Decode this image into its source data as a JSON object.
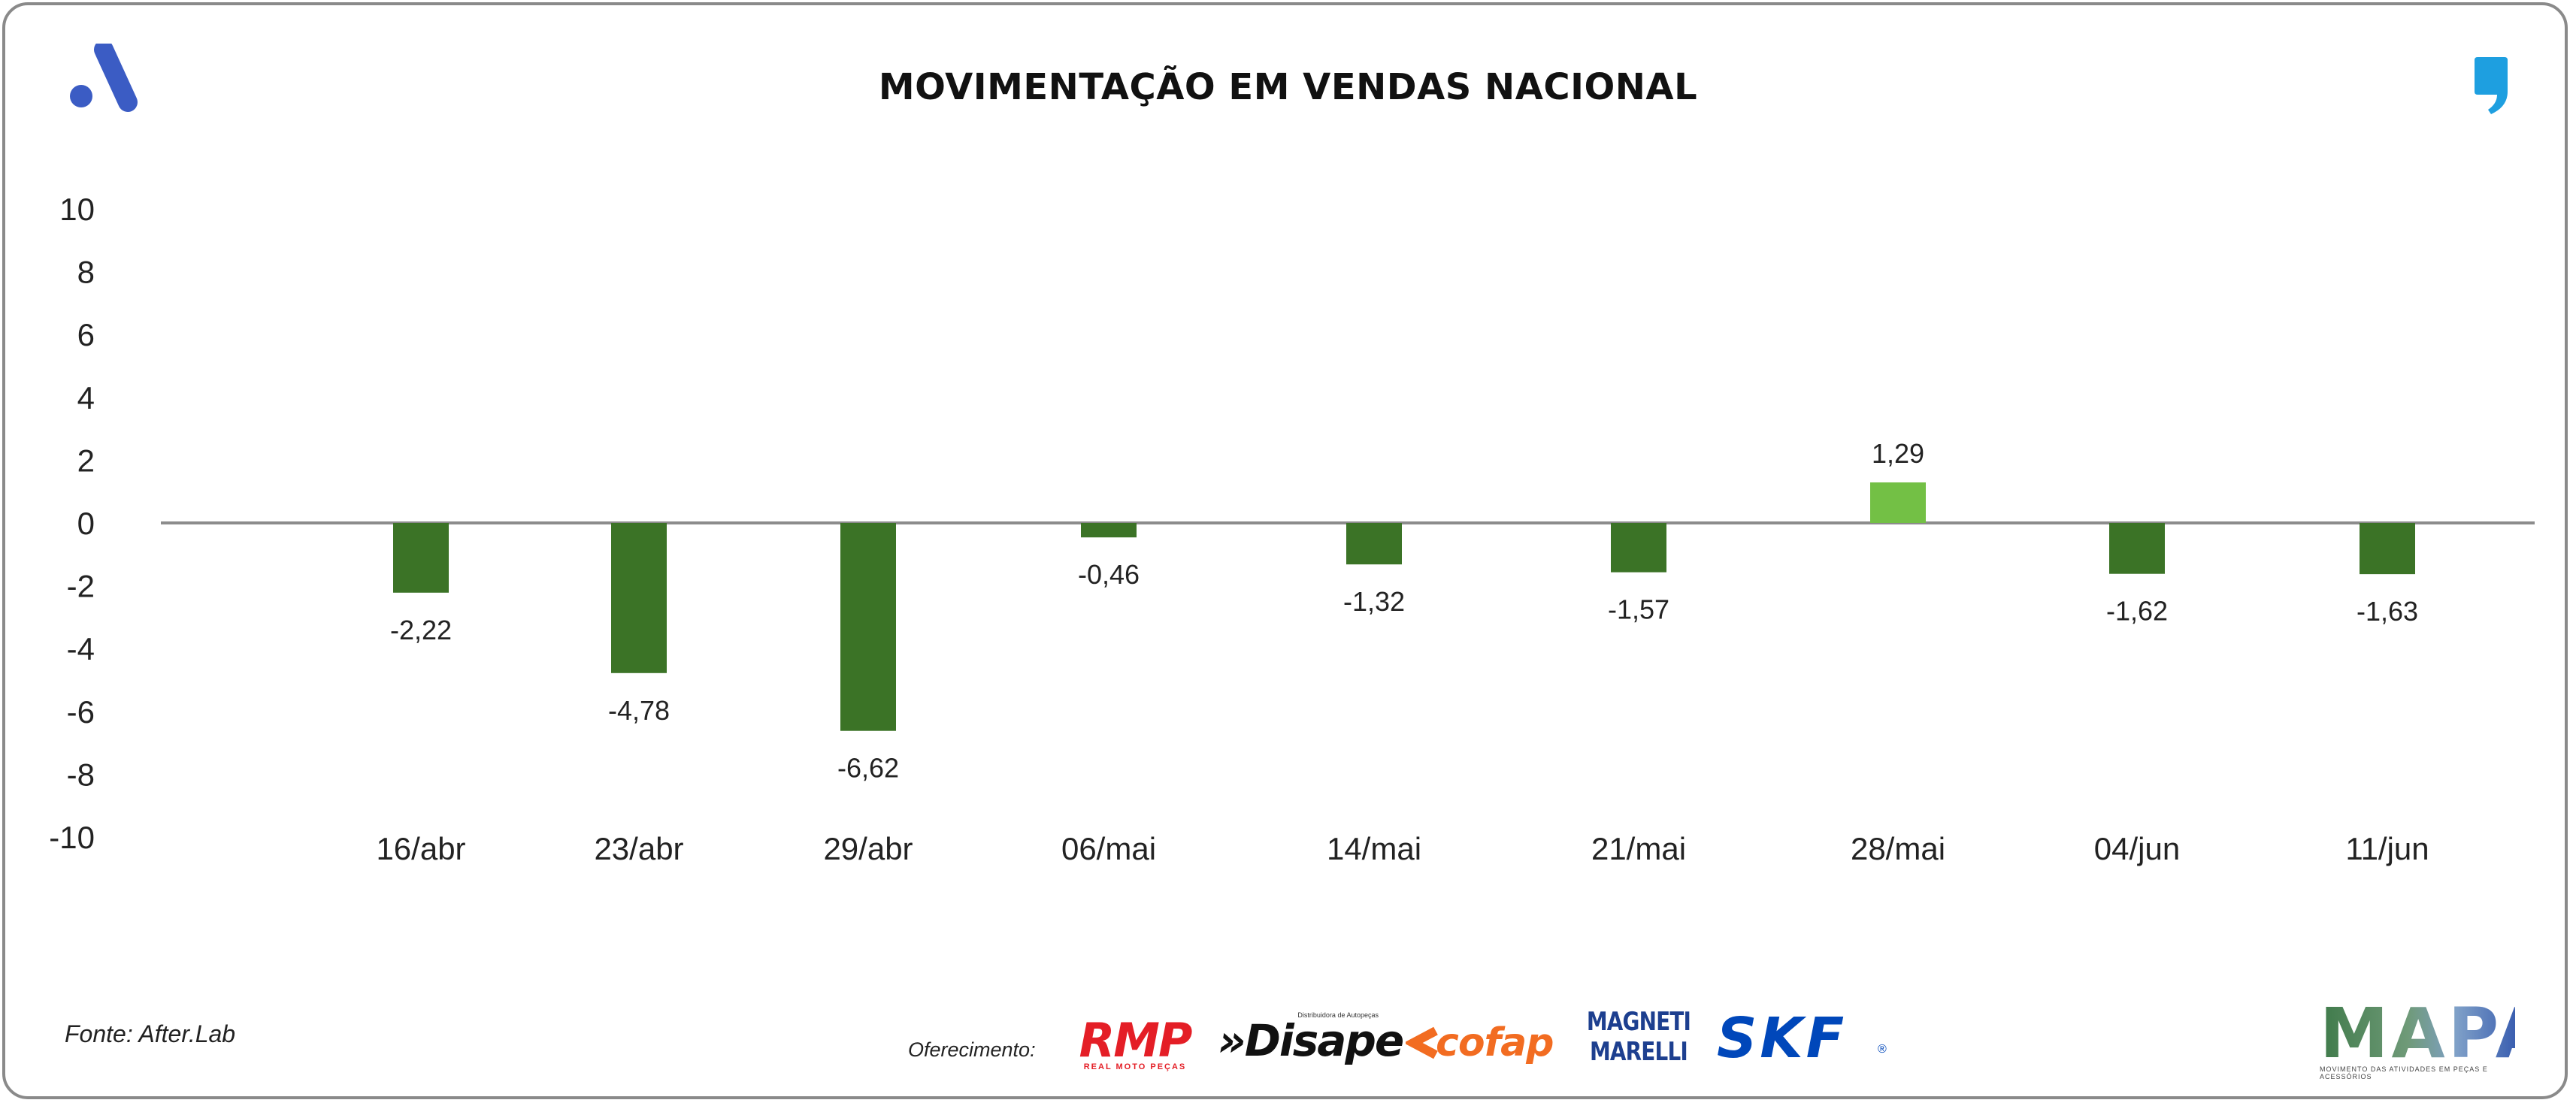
{
  "header": {
    "title": "MOVIMENTAÇÃO EM VENDAS NACIONAL"
  },
  "footer": {
    "source": "Fonte: After.Lab",
    "sponsor_label": "Oferecimento:",
    "sponsors": {
      "rmp": "RMP",
      "rmp_sub": "REAL MOTO PEÇAS",
      "disape": "»Disape",
      "disape_tag": "Distribuidora de Autopeças",
      "cofap": "cofap",
      "magneti_1": "MAGNETI",
      "magneti_2": "MARELLI",
      "skf": "SKF",
      "skf_reg": "®",
      "mapa": "MAPA",
      "mapa_sub": "MOVIMENTO DAS ATIVIDADES EM PEÇAS E ACESSÓRIOS"
    }
  },
  "colors": {
    "negative": "#3b7326",
    "positive": "#73c045",
    "baseline": "#8c8c8c",
    "logo_left": "#3b5cc4",
    "logo_right": "#1e9fe0"
  },
  "chart_data": {
    "type": "bar",
    "title": "MOVIMENTAÇÃO EM VENDAS NACIONAL",
    "xlabel": "",
    "ylabel": "",
    "ylim": [
      -10,
      10
    ],
    "yticks": [
      "10",
      "8",
      "6",
      "4",
      "2",
      "0",
      "-2",
      "-4",
      "-6",
      "-8",
      "-10"
    ],
    "categories": [
      "16/abr",
      "23/abr",
      "29/abr",
      "06/mai",
      "14/mai",
      "21/mai",
      "28/mai",
      "04/jun",
      "11/jun"
    ],
    "values": [
      -2.22,
      -4.78,
      -6.62,
      -0.46,
      -1.32,
      -1.57,
      1.29,
      -1.62,
      -1.63
    ],
    "labels": [
      "-2,22",
      "-4,78",
      "-6,62",
      "-0,46",
      "-1,32",
      "-1,57",
      "1,29",
      "-1,62",
      "-1,63"
    ],
    "grid": false,
    "legend": "none"
  }
}
